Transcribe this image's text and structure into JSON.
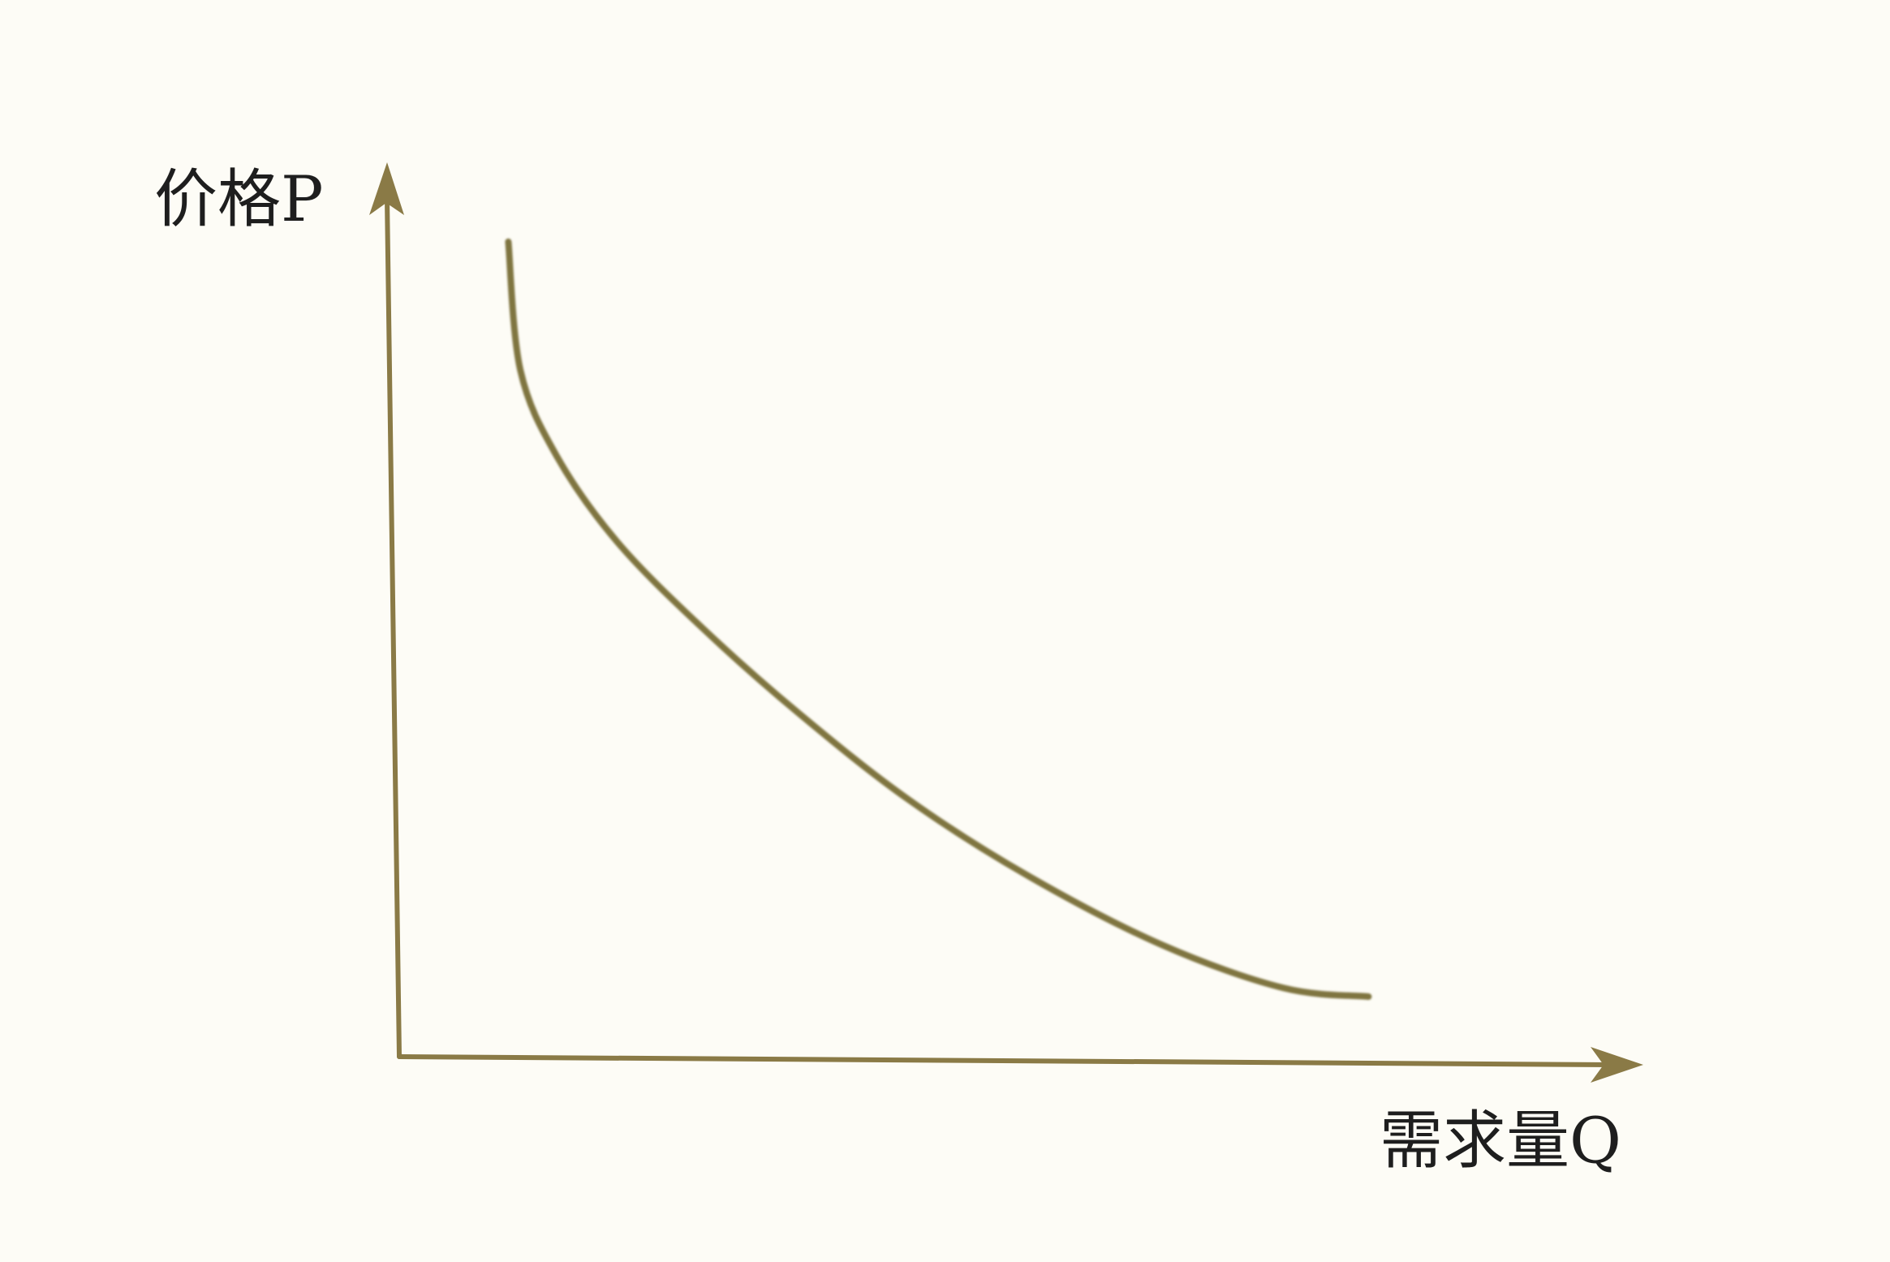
{
  "colors": {
    "background": "#fdfcf6",
    "axis": "#8a7a46",
    "curve": "#7f7440",
    "text": "#1e1e1e"
  },
  "chart_data": {
    "type": "line",
    "ylabel": "价格P",
    "xlabel": "需求量Q",
    "grid": false,
    "axes_arrows": true,
    "tick_labels": false,
    "series": [
      {
        "values_normalized": [
          [
            0.09,
            0.95
          ],
          [
            0.1,
            0.8
          ],
          [
            0.13,
            0.7
          ],
          [
            0.18,
            0.6
          ],
          [
            0.25,
            0.5
          ],
          [
            0.33,
            0.4
          ],
          [
            0.42,
            0.3
          ],
          [
            0.52,
            0.21
          ],
          [
            0.63,
            0.13
          ],
          [
            0.73,
            0.08
          ],
          [
            0.8,
            0.07
          ]
        ]
      }
    ],
    "xlim": [
      0,
      1
    ],
    "ylim": [
      0,
      1
    ]
  }
}
